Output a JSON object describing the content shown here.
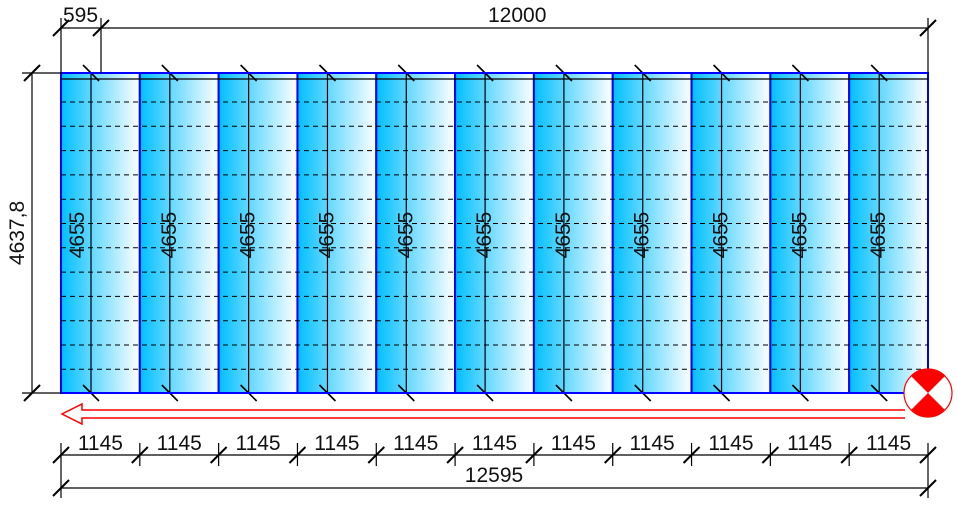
{
  "dimensions": {
    "top_offset": "595",
    "top_total": "12000",
    "left_height": "4637,8",
    "bottom_segment": "1145",
    "bottom_total": "12595"
  },
  "panels": {
    "count": 11,
    "length_label": "4655",
    "labels": [
      "4655",
      "4655",
      "4655",
      "4655",
      "4655",
      "4655",
      "4655",
      "4655",
      "4655",
      "4655",
      "4655"
    ]
  },
  "bottom_segments": [
    "1145",
    "1145",
    "1145",
    "1145",
    "1145",
    "1145",
    "1145",
    "1145",
    "1145",
    "1145",
    "1145"
  ],
  "colors": {
    "panel_gradient_start": "#00bfff",
    "panel_gradient_end": "#ffffff",
    "panel_border": "#0000ff",
    "direction_arrow": "#ff0000",
    "start_marker": "#ff0000"
  },
  "icons": {
    "direction": "laying-direction-arrow-icon",
    "start": "start-point-marker-icon"
  }
}
